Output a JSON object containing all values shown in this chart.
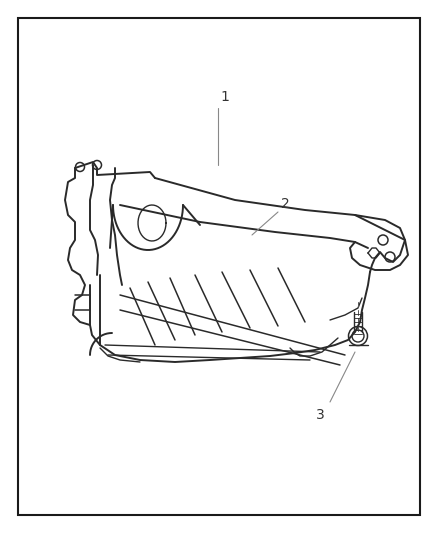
{
  "background_color": "#ffffff",
  "border_color": "#1a1a1a",
  "border_linewidth": 1.5,
  "fig_width": 4.38,
  "fig_height": 5.33,
  "dpi": 100,
  "label_1": "1",
  "label_2": "2",
  "label_3": "3",
  "label_color": "#333333",
  "label_fontsize": 10,
  "part_color": "#2a2a2a",
  "leader_color": "#888888",
  "part_linewidth": 1.4
}
